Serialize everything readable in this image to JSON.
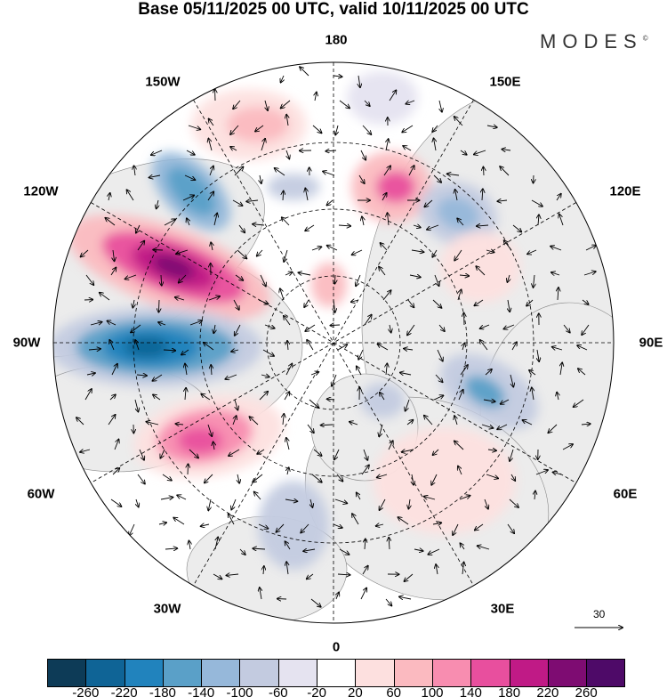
{
  "title": "Base 05/11/2025 00 UTC, valid 10/11/2025 00 UTC",
  "logo": "MODES",
  "logo_mark": "©",
  "longitude_labels": {
    "lon_180": "180",
    "lon_150w": "150W",
    "lon_150e": "150E",
    "lon_120w": "120W",
    "lon_120e": "120E",
    "lon_90w": "90W",
    "lon_90e": "90E",
    "lon_60w": "60W",
    "lon_60e": "60E",
    "lon_30w": "30W",
    "lon_30e": "30E",
    "lon_0": "0"
  },
  "vector_reference": "30",
  "colorbar": {
    "colors": [
      "#0d3b57",
      "#0f6496",
      "#2183bd",
      "#5aa0c8",
      "#96b8da",
      "#c3cbe0",
      "#e5e3f0",
      "#ffffff",
      "#fde0df",
      "#fbbac0",
      "#f88db0",
      "#e84f9e",
      "#c01a86",
      "#7e0c72",
      "#4e0a68"
    ],
    "labels": [
      "-260",
      "-220",
      "-180",
      "-140",
      "-100",
      "-60",
      "-20",
      "20",
      "60",
      "100",
      "140",
      "180",
      "220",
      "260"
    ]
  }
}
